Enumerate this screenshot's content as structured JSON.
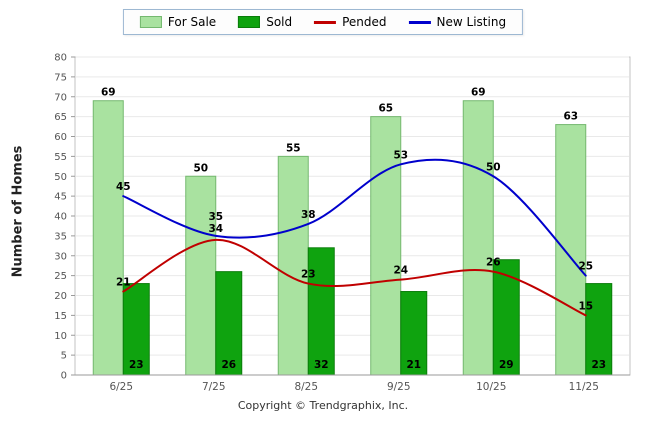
{
  "chart_data": {
    "type": "bar",
    "categories": [
      "6/25",
      "7/25",
      "8/25",
      "9/25",
      "10/25",
      "11/25"
    ],
    "series": [
      {
        "name": "For Sale",
        "type": "bar",
        "color": "#A9E2A0",
        "border_color": "#74B86F",
        "values": [
          69,
          50,
          55,
          65,
          69,
          63
        ]
      },
      {
        "name": "Sold",
        "type": "bar",
        "color": "#0FA30F",
        "border_color": "#0A7D0A",
        "values": [
          23,
          26,
          32,
          21,
          29,
          23
        ]
      },
      {
        "name": "Pended",
        "type": "line",
        "color": "#C00000",
        "values": [
          21,
          34,
          23,
          24,
          26,
          15
        ]
      },
      {
        "name": "New Listing",
        "type": "line",
        "color": "#0000CC",
        "values": [
          45,
          35,
          38,
          53,
          50,
          25
        ]
      }
    ],
    "ylabel": "Number of Homes",
    "ylim": [
      0,
      80
    ],
    "ytick_step": 5,
    "grid": true,
    "legend_position": "top"
  },
  "footer": {
    "copyright": "Copyright © Trendgraphix, Inc."
  },
  "colors": {
    "axis_text": "#555555",
    "grid": "#e9e9e9",
    "plot_border": "#c3c3c3",
    "axis_line": "#9a9a9a",
    "label_text": "#000000",
    "legend_border": "#9DB8D2"
  }
}
